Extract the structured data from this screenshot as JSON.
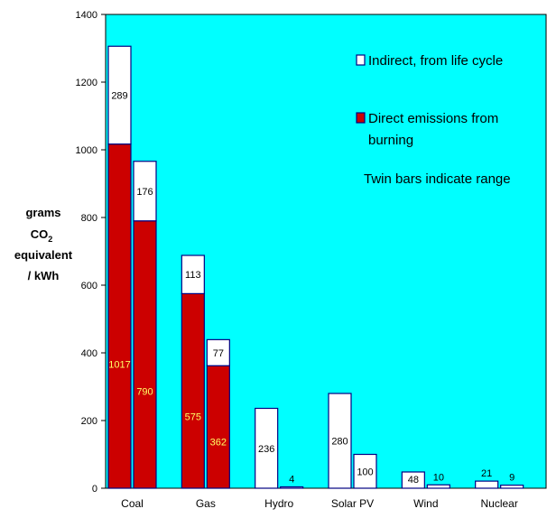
{
  "chart_data": {
    "type": "bar",
    "ylabel": [
      "grams",
      "CO",
      "2",
      "equivalent",
      "/ kWh"
    ],
    "ylim": [
      0,
      1400
    ],
    "yticks": [
      0,
      200,
      400,
      600,
      800,
      1000,
      1200,
      1400
    ],
    "categories": [
      "Coal",
      "Gas",
      "Hydro",
      "Solar PV",
      "Wind",
      "Nuclear"
    ],
    "series": [
      {
        "name": "Direct emissions from burning"
      },
      {
        "name": "Indirect, from life cycle"
      }
    ],
    "bars": [
      {
        "category": "Coal",
        "direct": 1017,
        "indirect": 289,
        "direct_label": "1017",
        "indirect_label": "289"
      },
      {
        "category": "Coal",
        "direct": 790,
        "indirect": 176,
        "direct_label": "790",
        "indirect_label": "176"
      },
      {
        "category": "Gas",
        "direct": 575,
        "indirect": 113,
        "direct_label": "575",
        "indirect_label": "113"
      },
      {
        "category": "Gas",
        "direct": 362,
        "indirect": 77,
        "direct_label": "362",
        "indirect_label": "77"
      },
      {
        "category": "Hydro",
        "direct": 0,
        "indirect": 236,
        "direct_label": "",
        "indirect_label": "236"
      },
      {
        "category": "Hydro",
        "direct": 0,
        "indirect": 4,
        "direct_label": "",
        "indirect_label": "4"
      },
      {
        "category": "Solar PV",
        "direct": 0,
        "indirect": 280,
        "direct_label": "",
        "indirect_label": "280"
      },
      {
        "category": "Solar PV",
        "direct": 0,
        "indirect": 100,
        "direct_label": "",
        "indirect_label": "100"
      },
      {
        "category": "Wind",
        "direct": 0,
        "indirect": 48,
        "direct_label": "",
        "indirect_label": "48"
      },
      {
        "category": "Wind",
        "direct": 0,
        "indirect": 10,
        "direct_label": "",
        "indirect_label": "10"
      },
      {
        "category": "Nuclear",
        "direct": 0,
        "indirect": 21,
        "direct_label": "",
        "indirect_label": "21"
      },
      {
        "category": "Nuclear",
        "direct": 0,
        "indirect": 9,
        "direct_label": "",
        "indirect_label": "9"
      }
    ],
    "annotations": [
      "Twin bars indicate range"
    ],
    "colors": {
      "plot_background": "#00ffff",
      "direct": "#cc0000",
      "indirect": "#ffffff",
      "outline": "#000080"
    },
    "legend_position": "top-right",
    "grid": false
  }
}
